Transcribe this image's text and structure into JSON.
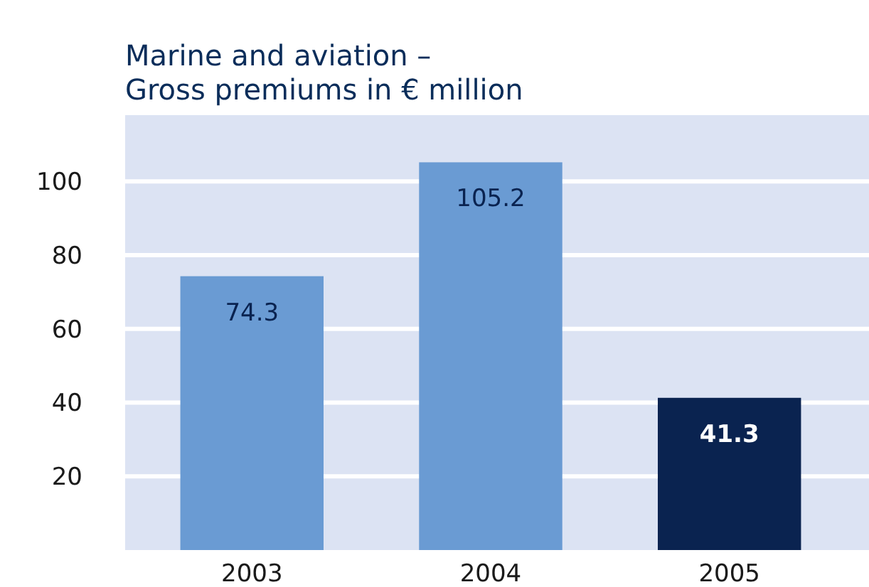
{
  "chart_data": {
    "type": "bar",
    "title": "Marine and aviation –\nGross premiums in € million",
    "categories": [
      "2003",
      "2004",
      "2005"
    ],
    "values": [
      74.3,
      105.2,
      41.3
    ],
    "colors": [
      "#6a9bd3",
      "#6a9bd3",
      "#0a2350"
    ],
    "ylim": [
      0,
      118
    ],
    "yticks": [
      20,
      40,
      60,
      80,
      100
    ],
    "grid": true,
    "data_labels": true
  }
}
